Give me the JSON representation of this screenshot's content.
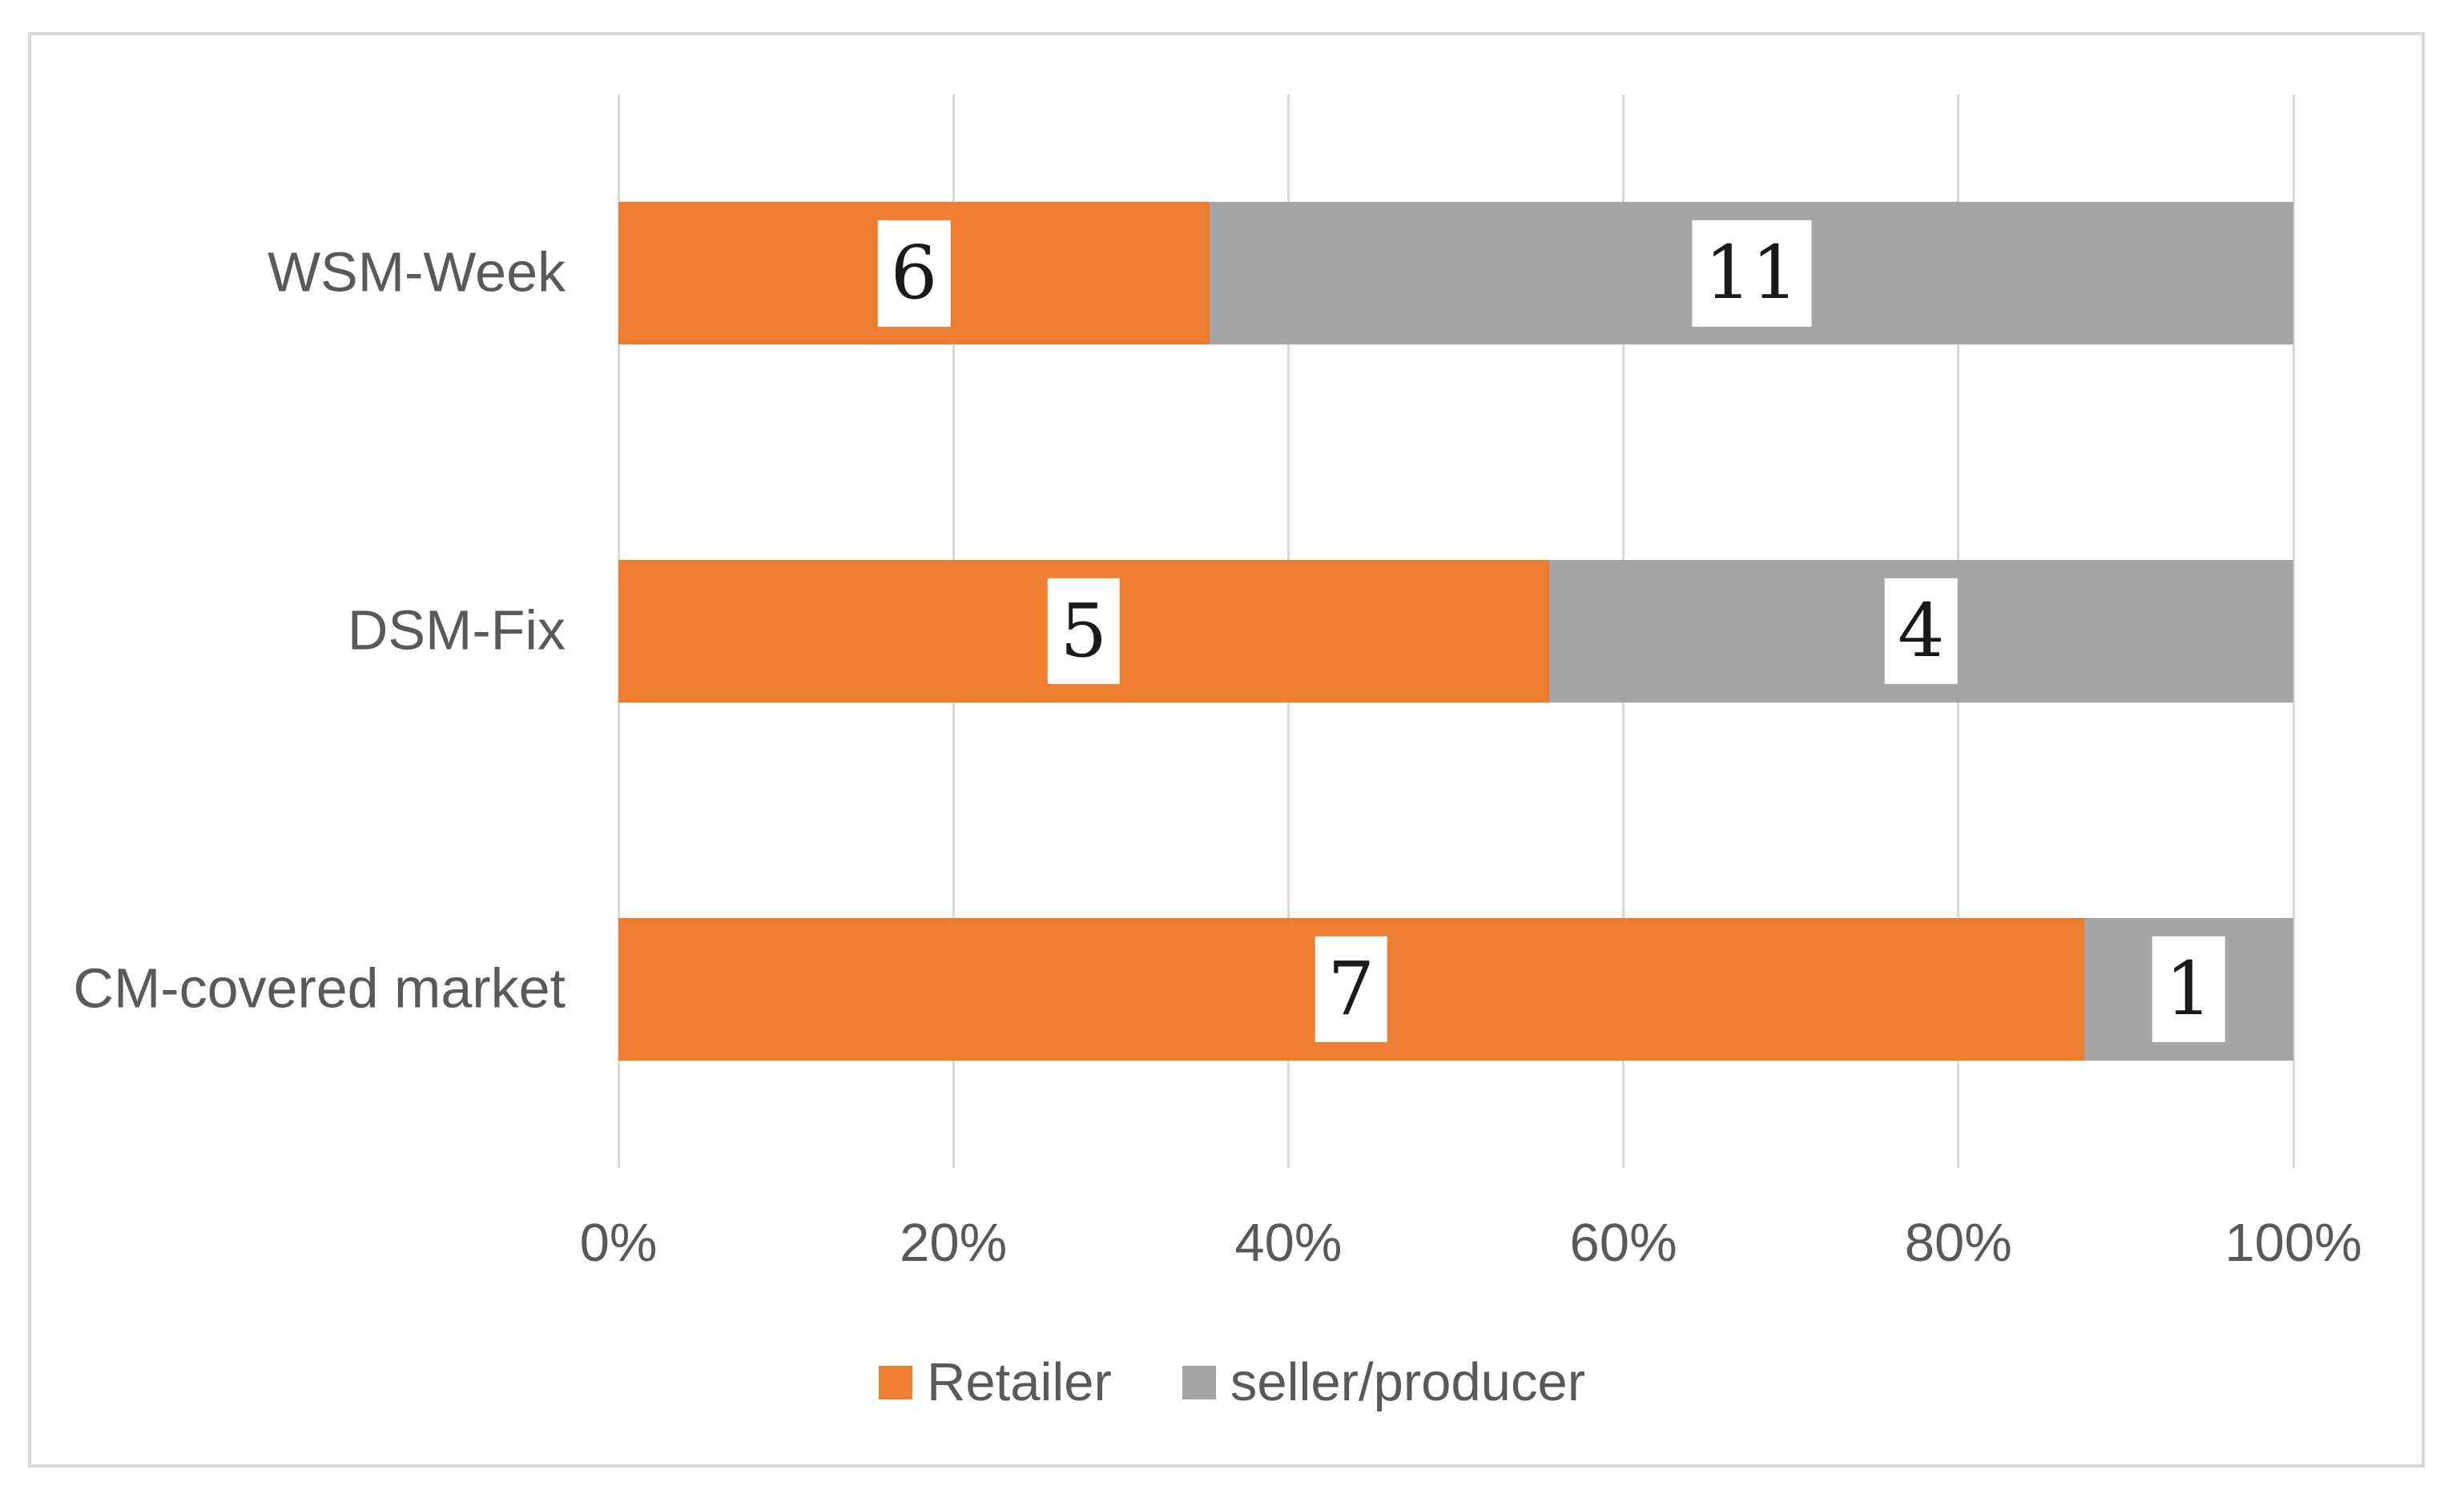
{
  "chart_data": {
    "type": "bar",
    "orientation": "horizontal",
    "stacked": "100%",
    "title": "",
    "xlabel": "",
    "ylabel": "",
    "categories": [
      "WSM-Week",
      "DSM-Fix",
      "CM-covered market"
    ],
    "series": [
      {
        "name": "Retailer",
        "color": "#ED7D31",
        "values": [
          6,
          5,
          7
        ]
      },
      {
        "name": "seller/producer",
        "color": "#A5A5A5",
        "values": [
          11,
          4,
          1
        ]
      }
    ],
    "data_labels": {
      "show": true,
      "values": [
        [
          6,
          11
        ],
        [
          5,
          4
        ],
        [
          7,
          1
        ]
      ],
      "background": "#FFFFFF",
      "text_color": "#1A1A1A"
    },
    "x_tick_labels": [
      "0%",
      "20%",
      "40%",
      "60%",
      "80%",
      "100%"
    ],
    "xlim": [
      0,
      1
    ],
    "grid": "vertical-major-only",
    "legend_position": "bottom"
  },
  "colors": {
    "retailer": "#ED7D31",
    "seller_producer": "#A5A5A5",
    "axis_text": "#595959",
    "gridline": "#D9D9D9",
    "chart_border": "#D9D9D9",
    "background": "#FFFFFF"
  }
}
